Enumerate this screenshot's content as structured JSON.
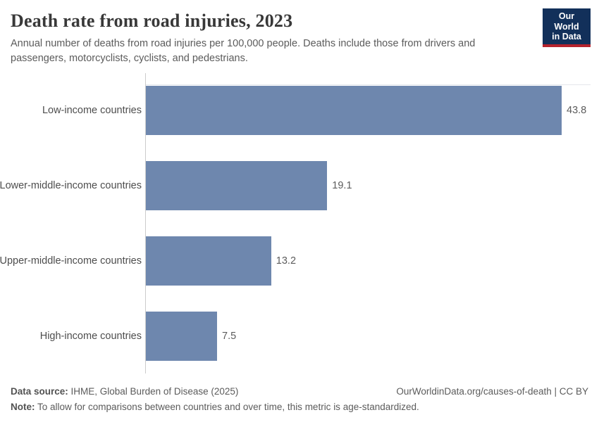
{
  "header": {
    "title": "Death rate from road injuries, 2023",
    "subtitle": "Annual number of deaths from road injuries per 100,000 people. Deaths include those from drivers and passengers, motorcyclists, cyclists, and pedestrians.",
    "logo": {
      "line1": "Our World",
      "line2": "in Data",
      "bg_color": "#12305a",
      "accent_color": "#b5232d"
    }
  },
  "chart_data": {
    "type": "bar",
    "orientation": "horizontal",
    "title": "Death rate from road injuries, 2023",
    "xlabel": "",
    "ylabel": "",
    "categories": [
      "Low-income countries",
      "Lower-middle-income countries",
      "Upper-middle-income countries",
      "High-income countries"
    ],
    "values": [
      43.8,
      19.1,
      13.2,
      7.5
    ],
    "value_labels": [
      "43.8",
      "19.1",
      "13.2",
      "7.5"
    ],
    "xlim": [
      0,
      43.8
    ],
    "bar_color": "#6e87ae",
    "axis_color": "#cccccc",
    "grid": false,
    "legend": "none"
  },
  "footer": {
    "source_label": "Data source:",
    "source_text": " IHME, Global Burden of Disease (2025)",
    "note_label": "Note:",
    "note_text": " To allow for comparisons between countries and over time, this metric is age-standardized.",
    "citation": "OurWorldinData.org/causes-of-death | CC BY"
  }
}
